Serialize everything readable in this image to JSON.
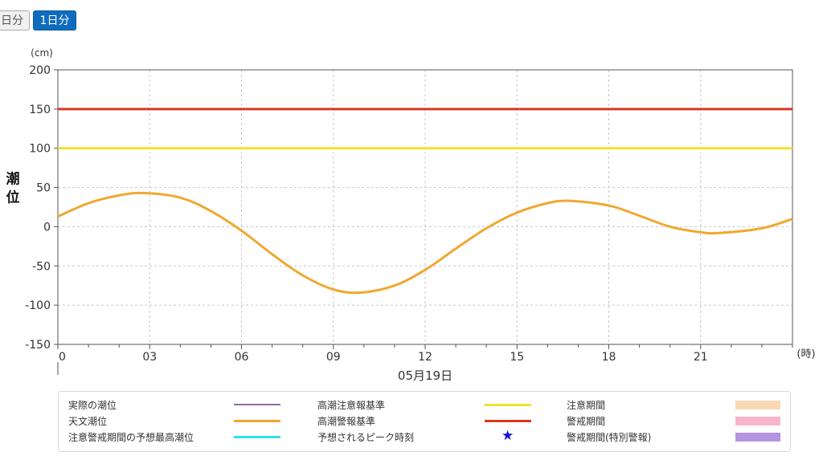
{
  "buttons": {
    "half_day": "日分",
    "one_day": "1日分"
  },
  "chart_data": {
    "type": "line",
    "y_unit": "(cm)",
    "ylabel": "潮位",
    "x_unit": "(時)",
    "date_label": "05月19日",
    "ylim": [
      -150,
      200
    ],
    "y_ticks": [
      200,
      150,
      100,
      50,
      0,
      -50,
      -100,
      -150
    ],
    "xlim": [
      0,
      24
    ],
    "x_ticks": [
      0,
      3,
      6,
      9,
      12,
      15,
      18,
      21
    ],
    "x_tick_labels": [
      "0",
      "03",
      "06",
      "09",
      "12",
      "15",
      "18",
      "21"
    ],
    "grid": true,
    "series": [
      {
        "name": "高潮警報基準",
        "color": "#d9391f",
        "x": [
          0,
          24
        ],
        "values": [
          150,
          150
        ]
      },
      {
        "name": "高潮注意報基準",
        "color": "#f2e12c",
        "x": [
          0,
          24
        ],
        "values": [
          100,
          100
        ]
      },
      {
        "name": "天文潮位",
        "color": "#f0a830",
        "x": [
          0,
          1,
          2,
          2.8,
          4,
          5,
          6,
          7,
          8,
          9,
          9.9,
          11,
          12,
          13,
          14,
          15,
          16,
          16.7,
          18,
          19,
          20,
          21,
          21.6,
          23,
          24
        ],
        "values": [
          13,
          30,
          40,
          43,
          37,
          20,
          -5,
          -35,
          -62,
          -80,
          -84,
          -75,
          -55,
          -28,
          -2,
          18,
          30,
          33,
          27,
          14,
          0,
          -7,
          -8,
          -2,
          10
        ]
      }
    ]
  },
  "legend": [
    {
      "label": "実際の潮位",
      "color": "#8e6bb0",
      "kind": "line"
    },
    {
      "label": "高潮注意報基準",
      "color": "#f2e12c",
      "kind": "line"
    },
    {
      "label": "注意期間",
      "color": "#f8d9b4",
      "kind": "box"
    },
    {
      "label": "天文潮位",
      "color": "#f0a830",
      "kind": "line"
    },
    {
      "label": "高潮警報基準",
      "color": "#d9391f",
      "kind": "line"
    },
    {
      "label": "警戒期間",
      "color": "#f8b4cc",
      "kind": "box"
    },
    {
      "label": "注意警戒期間の予想最高潮位",
      "color": "#33e0e0",
      "kind": "line"
    },
    {
      "label": "予想されるピーク時刻",
      "color": "#0b0bd6",
      "kind": "star"
    },
    {
      "label": "警戒期間(特別警報)",
      "color": "#b394e0",
      "kind": "box"
    }
  ]
}
